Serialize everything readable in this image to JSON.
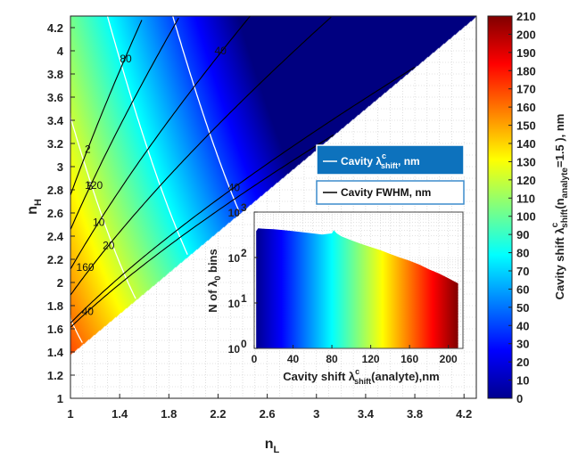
{
  "chart_data": [
    {
      "type": "heatmap",
      "xlabel": "n",
      "xlabel_sub": "L",
      "ylabel": "n",
      "ylabel_sub": "H",
      "xlim": [
        1,
        4.3
      ],
      "ylim": [
        1,
        4.3
      ],
      "xticks": [
        "1",
        "1.4",
        "1.8",
        "2.2",
        "2.6",
        "3",
        "3.4",
        "3.8",
        "4.2"
      ],
      "yticks": [
        "1",
        "1.2",
        "1.4",
        "1.6",
        "1.8",
        "2",
        "2.2",
        "2.4",
        "2.6",
        "2.8",
        "3",
        "3.2",
        "3.4",
        "3.6",
        "3.8",
        "4",
        "4.2"
      ],
      "grid": true,
      "colormap": "jet",
      "colorbar": {
        "min": 0,
        "max": 210,
        "ticks": [
          "0",
          "10",
          "20",
          "30",
          "40",
          "50",
          "60",
          "70",
          "80",
          "90",
          "100",
          "110",
          "120",
          "130",
          "140",
          "150",
          "160",
          "170",
          "180",
          "190",
          "200",
          "210"
        ],
        "label": "Cavity shift λ",
        "label_sup": "c",
        "label_sub": "shift",
        "label_tail": "(n",
        "label_sub2": "analyte",
        "label_end": "=1.5 ), nm"
      },
      "legend": [
        {
          "text": "Cavity λ",
          "sup": "c",
          "sub": "shift",
          "tail": ", nm",
          "line_color": "#ffffff",
          "bg": "#0d72bd",
          "text_color": "#ffffff"
        },
        {
          "text": "Cavity FWHM, nm",
          "line_color": "#000000",
          "bg": "#ffffff",
          "text_color": "#111111"
        }
      ],
      "fwhm_contours": [
        {
          "label": "2",
          "label_at": [
            1.14,
            3.15
          ]
        },
        {
          "label": "5",
          "label_at": [
            1.16,
            2.83
          ]
        },
        {
          "label": "10",
          "label_at": [
            1.23,
            2.52
          ]
        },
        {
          "label": "20",
          "label_at": [
            1.31,
            2.32
          ]
        },
        {
          "label": "40",
          "label_at": [
            2.33,
            2.82
          ]
        },
        {
          "label": "40",
          "label_at": [
            1.14,
            1.75
          ]
        }
      ],
      "shift_contours": [
        {
          "label": "40",
          "value": 40,
          "label_at": [
            2.22,
            4.0
          ]
        },
        {
          "label": "80",
          "value": 80,
          "label_at": [
            1.45,
            3.93
          ]
        },
        {
          "label": "120",
          "value": 120,
          "label_at": [
            1.19,
            2.84
          ]
        },
        {
          "label": "160",
          "value": 160,
          "label_at": [
            1.12,
            2.13
          ]
        }
      ],
      "valid_region": "n_H >= n_L (upper-left triangle, diagonal boundary from (1,1.38) to (4.3,4.3))"
    },
    {
      "type": "area",
      "title": "",
      "xlabel": "Cavity shift λ",
      "xlabel_sup": "c",
      "xlabel_sub": "shift",
      "xlabel_tail": "(analyte),nm",
      "ylabel": "N of λ",
      "ylabel_sub": "0",
      "ylabel_tail": " bins",
      "yscale": "log",
      "xlim": [
        0,
        215
      ],
      "ylim": [
        1,
        1000
      ],
      "xticks": [
        "0",
        "40",
        "80",
        "120",
        "160",
        "200"
      ],
      "yticks": [
        "10",
        "10",
        "10",
        "10"
      ],
      "yticks_exp": [
        "0",
        "1",
        "2",
        "3"
      ],
      "grid": true,
      "x": [
        2,
        4,
        10,
        20,
        30,
        40,
        50,
        60,
        70,
        80,
        82,
        85,
        90,
        100,
        110,
        120,
        130,
        140,
        150,
        160,
        170,
        180,
        190,
        200,
        210
      ],
      "values": [
        380,
        440,
        430,
        420,
        400,
        380,
        360,
        340,
        320,
        340,
        400,
        340,
        290,
        240,
        200,
        170,
        145,
        120,
        100,
        85,
        70,
        55,
        45,
        35,
        27
      ]
    }
  ]
}
